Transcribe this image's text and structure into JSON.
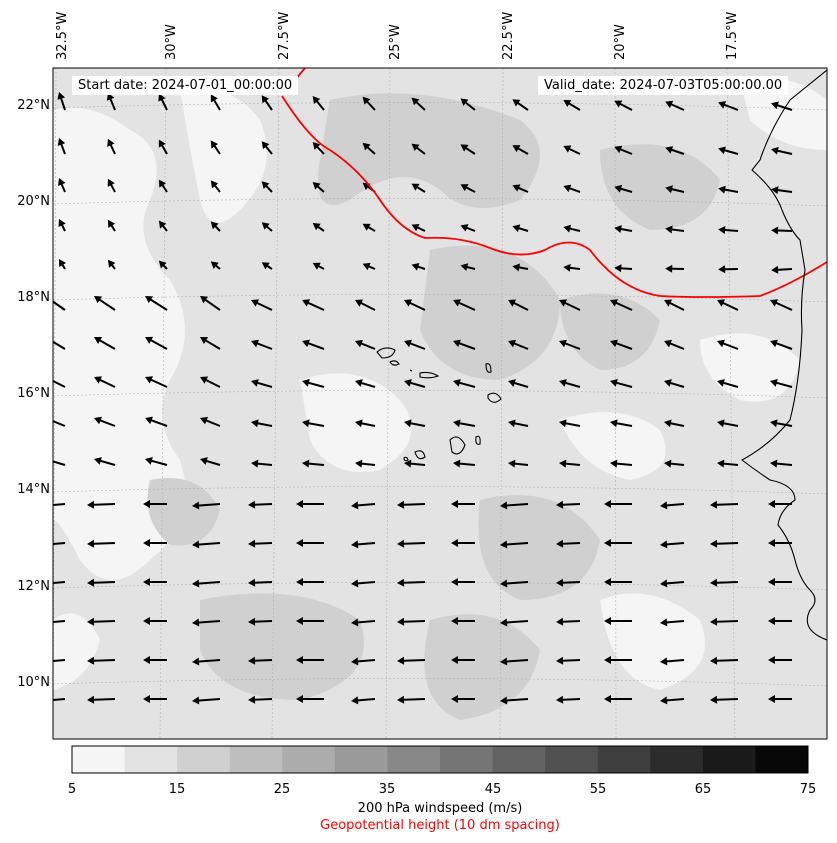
{
  "header": {
    "start_date": "Start date: 2024-07-01_00:00:00",
    "valid_date": "Valid_date: 2024-07-03T05:00:00.00"
  },
  "axes": {
    "longitude_ticks": [
      "32.5°W",
      "30°W",
      "27.5°W",
      "25°W",
      "22.5°W",
      "20°W",
      "17.5°W"
    ],
    "latitude_ticks": [
      "22°N",
      "20°N",
      "18°N",
      "16°N",
      "14°N",
      "12°N",
      "10°N"
    ]
  },
  "colorbar": {
    "ticks": [
      "5",
      "15",
      "25",
      "35",
      "45",
      "55",
      "65",
      "75"
    ],
    "levels": [
      5,
      10,
      15,
      20,
      25,
      30,
      35,
      40,
      45,
      50,
      55,
      60,
      65,
      70,
      75
    ],
    "colors": [
      "#f5f5f5",
      "#e3e3e3",
      "#d0d0d0",
      "#bebebe",
      "#acacac",
      "#9a9a9a",
      "#888888",
      "#757575",
      "#636363",
      "#515151",
      "#3f3f3f",
      "#2c2c2c",
      "#1a1a1a",
      "#080808"
    ],
    "label": "200 hPa windspeed (m/s)",
    "sublabel": "Geopotential height (10 dm spacing)"
  },
  "colors": {
    "geopotential_contour": "#ff0000",
    "wind_vector": "#000000",
    "coastline": "#000000",
    "sublabel_text": "#ff0000"
  }
}
